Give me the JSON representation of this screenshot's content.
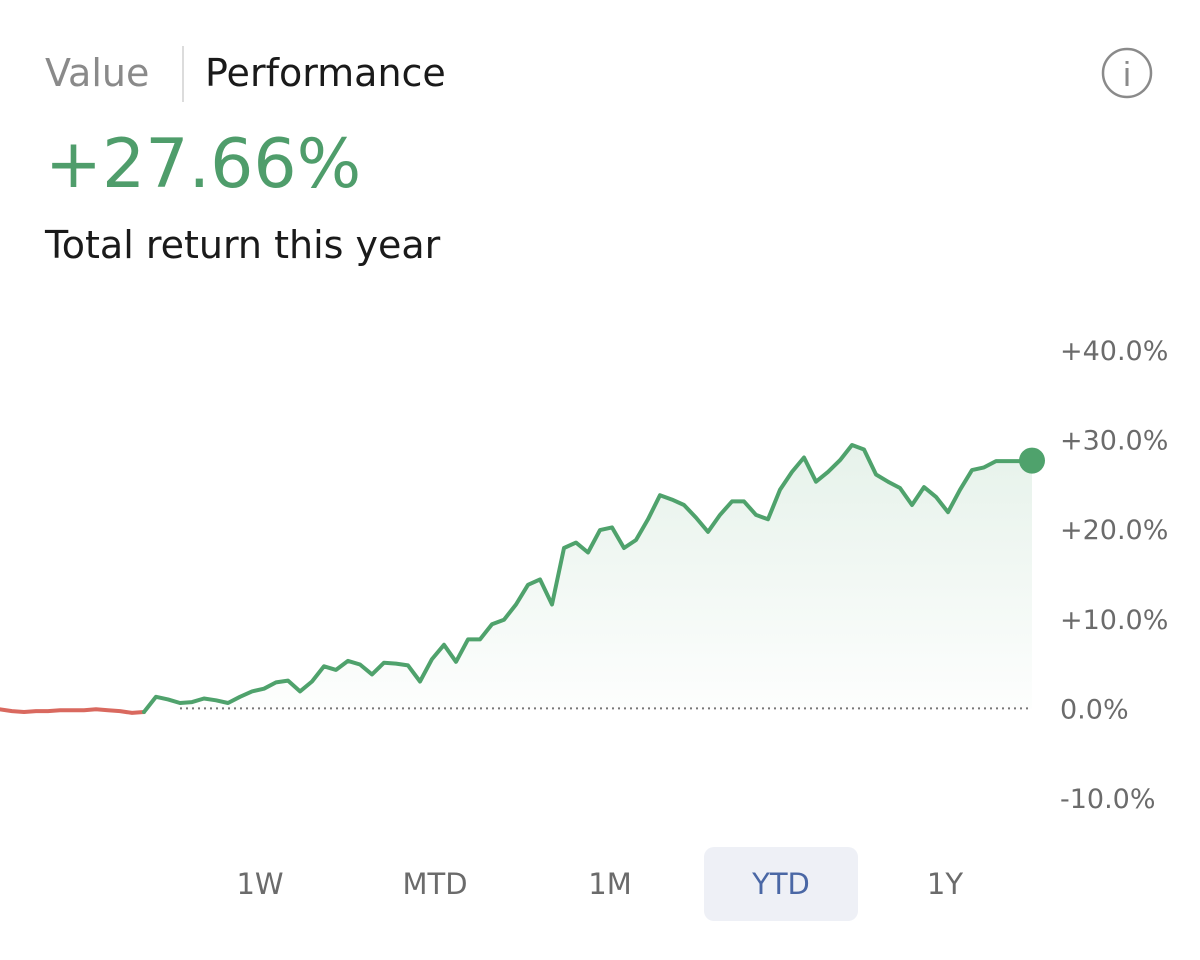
{
  "tabs": [
    "Value",
    "Performance"
  ],
  "info_icon": "i",
  "headline": "+27.66%",
  "subtitle": "Total return this year",
  "chart_data": {
    "type": "line",
    "ylim": [
      -10,
      40
    ],
    "yticks": [
      {
        "value": -10,
        "label": "-10.0%"
      },
      {
        "value": 0,
        "label": "0.0%"
      },
      {
        "value": 10,
        "label": "+10.0%"
      },
      {
        "value": 20,
        "label": "+20.0%"
      },
      {
        "value": 30,
        "label": "+30.0%"
      },
      {
        "value": 40,
        "label": "+40.0%"
      }
    ],
    "zero_line": true,
    "series": [
      {
        "color": "#d9695f",
        "values": [
          -0.1,
          -0.3,
          -0.4,
          -0.3,
          -0.3,
          -0.2,
          -0.2,
          -0.2,
          -0.1,
          -0.2,
          -0.3,
          -0.5,
          -0.4,
          null,
          null,
          null,
          null,
          null,
          null,
          null,
          null,
          null,
          null,
          null,
          null,
          null,
          null,
          null,
          null,
          null,
          null,
          null,
          null,
          null,
          null,
          null,
          null,
          null,
          null,
          null,
          null,
          null,
          null,
          null,
          null,
          null,
          null,
          null,
          null,
          null,
          null,
          null,
          null,
          null,
          null,
          null,
          null,
          null,
          null,
          null,
          null,
          null,
          null,
          null,
          null,
          null,
          null,
          null,
          null,
          null,
          null,
          null,
          null,
          null,
          null,
          null,
          null,
          null,
          null,
          null,
          null,
          null,
          null,
          null,
          null,
          null,
          null
        ]
      },
      {
        "color": "#4fa26c",
        "values": [
          null,
          null,
          null,
          null,
          null,
          null,
          null,
          null,
          null,
          null,
          null,
          null,
          -0.4,
          1.3,
          1.0,
          0.6,
          0.7,
          1.1,
          0.9,
          0.6,
          1.3,
          1.9,
          2.2,
          2.9,
          3.1,
          1.9,
          3.0,
          4.7,
          4.3,
          5.3,
          4.9,
          3.8,
          5.1,
          5.0,
          4.8,
          3.0,
          5.5,
          7.1,
          5.2,
          7.7,
          7.7,
          9.4,
          9.9,
          11.6,
          13.8,
          14.4,
          11.6,
          17.9,
          18.5,
          17.4,
          19.9,
          20.2,
          17.9,
          18.8,
          21.1,
          23.8,
          23.3,
          22.7,
          21.3,
          19.7,
          21.6,
          23.1,
          23.1,
          21.6,
          21.1,
          24.4,
          26.4,
          28.0,
          25.3,
          26.4,
          27.7,
          29.4,
          28.9,
          26.1,
          25.3,
          24.6,
          22.7,
          24.7,
          23.6,
          21.9,
          24.4,
          26.6,
          26.9,
          27.6,
          27.6,
          27.6,
          27.66
        ]
      }
    ]
  },
  "range_buttons": [
    "1W",
    "MTD",
    "1M",
    "YTD",
    "1Y"
  ],
  "selected_range_index": 3
}
